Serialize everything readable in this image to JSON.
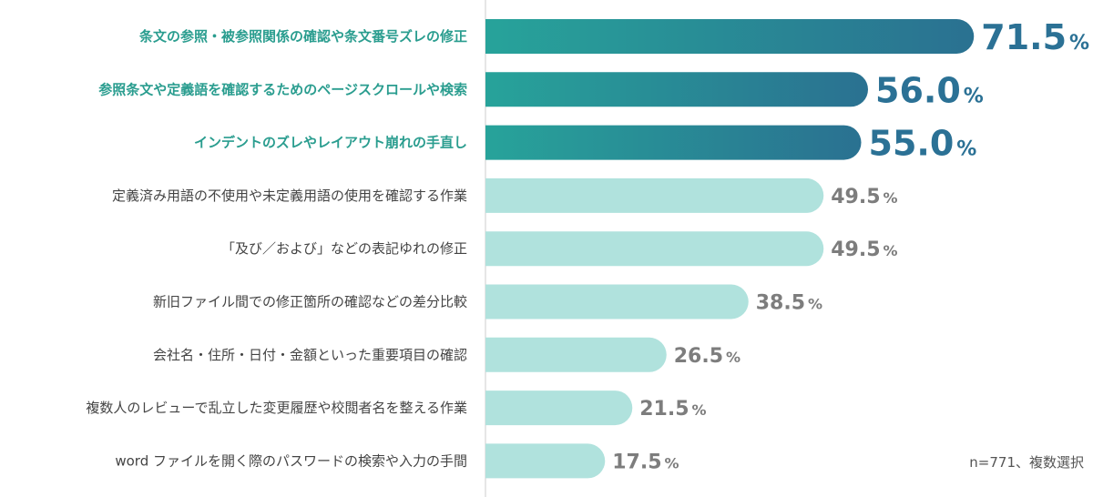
{
  "chart_data": {
    "type": "bar",
    "orientation": "horizontal",
    "categories": [
      "条文の参照・被参照関係の確認や条文番号ズレの修正",
      "参照条文や定義語を確認するためのページスクロールや検索",
      "インデントのズレやレイアウト崩れの手直し",
      "定義済み用語の不使用や未定義用語の使用を確認する作業",
      "「及び／および」などの表記ゆれの修正",
      "新旧ファイル間での修正箇所の確認などの差分比較",
      "会社名・住所・日付・金額といった重要項目の確認",
      "複数人のレビューで乱立した変更履歴や校閲者名を整える作業",
      "word ファイルを開く際のパスワードの検索や入力の手間"
    ],
    "values": [
      71.5,
      56.0,
      55.0,
      49.5,
      49.5,
      38.5,
      26.5,
      21.5,
      17.5
    ],
    "value_labels": [
      "71.5",
      "56.0",
      "55.0",
      "49.5",
      "49.5",
      "38.5",
      "26.5",
      "21.5",
      "17.5"
    ],
    "unit": "%",
    "highlight_top": 3,
    "xlim": [
      0,
      100
    ],
    "grid": false,
    "colors": {
      "highlight_start": "#27a39a",
      "highlight_end": "#2a7191",
      "highlight_text": "#2a9d8f",
      "highlight_value": "#2b7195",
      "normal_bar": "#b0e2dd",
      "normal_text": "#444444",
      "normal_value": "#7d7d7d",
      "axis": "#cccccc"
    }
  },
  "footnote": "n=771、複数選択"
}
